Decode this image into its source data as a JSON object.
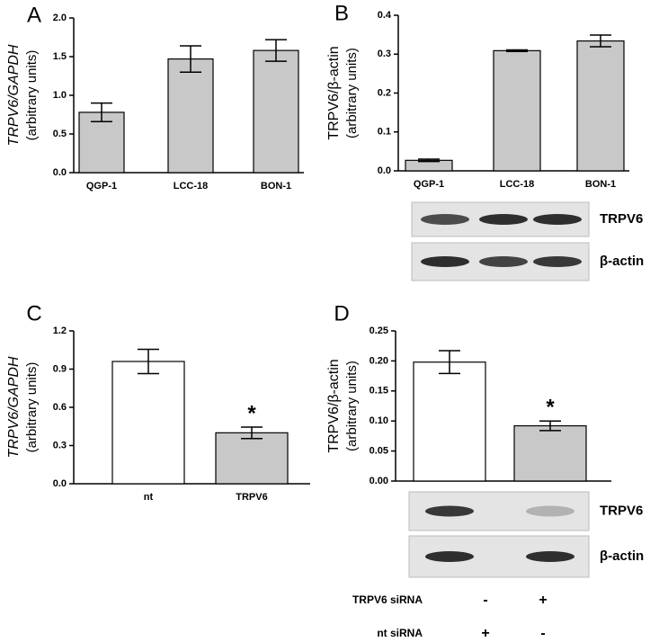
{
  "chart_data": [
    {
      "type": "bar",
      "panel": "A",
      "ylabel": "TRPV6/GAPDH",
      "ylabel2": "(arbitrary units)",
      "ylabel_italic": true,
      "categories": [
        "QGP-1",
        "LCC-18",
        "BON-1"
      ],
      "values": [
        0.78,
        1.47,
        1.58
      ],
      "errors": [
        0.12,
        0.17,
        0.14
      ],
      "colors": [
        "#c8c8c8",
        "#c8c8c8",
        "#c8c8c8"
      ],
      "significance": [
        null,
        null,
        null
      ],
      "ylim": [
        0,
        2
      ],
      "yticks": [
        {
          "value": 0,
          "label": "0.0"
        },
        0.5,
        {
          "value": 1,
          "label": "1.0"
        },
        1.5,
        {
          "value": 2,
          "label": "2.0"
        }
      ]
    },
    {
      "type": "bar",
      "panel": "B",
      "ylabel": "TRPV6/β-actin",
      "ylabel2": "(arbitrary units)",
      "ylabel_italic": false,
      "categories": [
        "QGP-1",
        "LCC-18",
        "BON-1"
      ],
      "values": [
        0.027,
        0.309,
        0.334
      ],
      "errors": [
        0.003,
        0.002,
        0.015
      ],
      "colors": [
        "#c8c8c8",
        "#c8c8c8",
        "#c8c8c8"
      ],
      "significance": [
        null,
        null,
        null
      ],
      "ylim": [
        0,
        0.4
      ],
      "yticks": [
        {
          "value": 0,
          "label": "0.0"
        },
        0.1,
        0.2,
        0.3,
        0.4
      ],
      "blot_labels": [
        "TRPV6",
        "β-actin"
      ]
    },
    {
      "type": "bar",
      "panel": "C",
      "ylabel": "TRPV6/GAPDH",
      "ylabel2": "(arbitrary units)",
      "ylabel_italic": true,
      "categories": [
        "nt",
        "TRPV6"
      ],
      "values": [
        0.96,
        0.4
      ],
      "errors": [
        0.095,
        0.045
      ],
      "colors": [
        "#ffffff",
        "#c8c8c8"
      ],
      "significance": [
        null,
        "*"
      ],
      "ylim": [
        0,
        1.2
      ],
      "yticks": [
        {
          "value": 0,
          "label": "0.0"
        },
        0.3,
        0.6,
        0.9,
        1.2
      ]
    },
    {
      "type": "bar",
      "panel": "D",
      "ylabel": "TRPV6/β-actin",
      "ylabel2": "(arbitrary units)",
      "ylabel_italic": false,
      "categories": [
        null,
        null
      ],
      "values": [
        0.198,
        0.092
      ],
      "errors": [
        0.019,
        0.008
      ],
      "colors": [
        "#ffffff",
        "#c8c8c8"
      ],
      "significance": [
        null,
        "*"
      ],
      "ylim": [
        0,
        0.25
      ],
      "yticks": [
        {
          "value": 0,
          "label": "0.00"
        },
        {
          "value": 0.05,
          "label": "0.05"
        },
        {
          "value": 0.1,
          "label": "0.10"
        },
        {
          "value": 0.15,
          "label": "0.15"
        },
        {
          "value": 0.2,
          "label": "0.20"
        },
        {
          "value": 0.25,
          "label": "0.25"
        }
      ],
      "blot_labels": [
        "TRPV6",
        "β-actin"
      ],
      "treatments": [
        {
          "label": "TRPV6 siRNA",
          "signs": [
            "-",
            "+"
          ]
        },
        {
          "label": "nt siRNA",
          "signs": [
            "+",
            "-"
          ]
        }
      ]
    }
  ]
}
